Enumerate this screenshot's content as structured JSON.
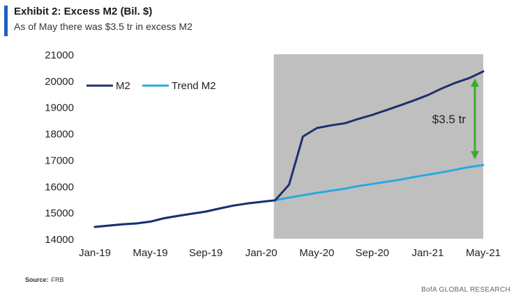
{
  "header": {
    "title": "Exhibit 2: Excess M2 (Bil. $)",
    "subtitle": "As of May there was $3.5 tr in excess M2"
  },
  "footer": {
    "source_label": "Source:",
    "source_value": "FRB",
    "brand": "BofA GLOBAL RESEARCH"
  },
  "colors": {
    "accent": "#1f5fbf",
    "m2": "#1c2f6e",
    "trend": "#29a8e0",
    "shade": "#bfbfbf",
    "arrow": "#3cab2a"
  },
  "chart_data": {
    "type": "line",
    "title": "Exhibit 2: Excess M2 (Bil. $)",
    "subtitle": "As of May there was $3.5 tr in excess M2",
    "x": [
      "Jan-19",
      "Feb-19",
      "Mar-19",
      "Apr-19",
      "May-19",
      "Jun-19",
      "Jul-19",
      "Aug-19",
      "Sep-19",
      "Oct-19",
      "Nov-19",
      "Dec-19",
      "Jan-20",
      "Feb-20",
      "Mar-20",
      "Apr-20",
      "May-20",
      "Jun-20",
      "Jul-20",
      "Aug-20",
      "Sep-20",
      "Oct-20",
      "Nov-20",
      "Dec-20",
      "Jan-21",
      "Feb-21",
      "Mar-21",
      "Apr-21",
      "May-21"
    ],
    "xticks": [
      "Jan-19",
      "May-19",
      "Sep-19",
      "Jan-20",
      "May-20",
      "Sep-20",
      "Jan-21",
      "May-21"
    ],
    "ylim": [
      14000,
      21000
    ],
    "yticks": [
      14000,
      15000,
      16000,
      17000,
      18000,
      19000,
      20000,
      21000
    ],
    "series": [
      {
        "name": "M2",
        "values": [
          14450,
          14500,
          14550,
          14580,
          14650,
          14780,
          14870,
          14950,
          15030,
          15150,
          15260,
          15340,
          15400,
          15460,
          16050,
          17880,
          18200,
          18300,
          18380,
          18550,
          18700,
          18880,
          19060,
          19250,
          19450,
          19700,
          19920,
          20100,
          20350
        ]
      },
      {
        "name": "Trend M2",
        "values": [
          14450,
          14500,
          14550,
          14580,
          14650,
          14780,
          14870,
          14950,
          15030,
          15150,
          15260,
          15340,
          15400,
          15460,
          15560,
          15650,
          15740,
          15820,
          15900,
          16000,
          16080,
          16160,
          16240,
          16340,
          16430,
          16520,
          16620,
          16720,
          16800
        ]
      }
    ],
    "shaded_region": {
      "from": "Feb-20",
      "to": "May-21"
    },
    "annotation": {
      "text": "$3.5 tr",
      "at": "May-21",
      "from_value": 16800,
      "to_value": 20350
    },
    "legend_position": "top-left",
    "grid": false
  }
}
